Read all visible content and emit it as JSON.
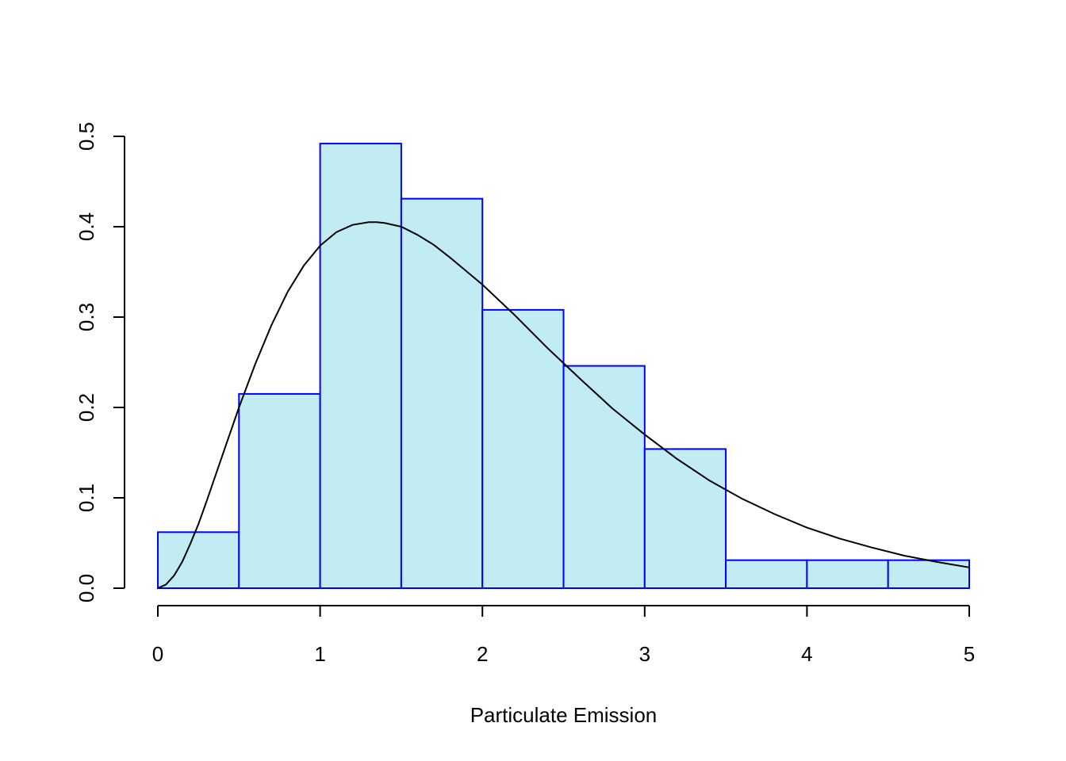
{
  "chart_data": {
    "type": "bar",
    "subtype": "histogram-with-density-curve",
    "title": "",
    "xlabel": "Particulate Emission",
    "ylabel": "",
    "xlim": [
      0,
      5
    ],
    "ylim": [
      0,
      0.5
    ],
    "x_ticks": [
      "0",
      "1",
      "2",
      "3",
      "4",
      "5"
    ],
    "y_ticks": [
      "0.0",
      "0.1",
      "0.2",
      "0.3",
      "0.4",
      "0.5"
    ],
    "bins": [
      {
        "from": 0.0,
        "to": 0.5,
        "density": 0.062
      },
      {
        "from": 0.5,
        "to": 1.0,
        "density": 0.215
      },
      {
        "from": 1.0,
        "to": 1.5,
        "density": 0.492
      },
      {
        "from": 1.5,
        "to": 2.0,
        "density": 0.431
      },
      {
        "from": 2.0,
        "to": 2.5,
        "density": 0.308
      },
      {
        "from": 2.5,
        "to": 3.0,
        "density": 0.246
      },
      {
        "from": 3.0,
        "to": 3.5,
        "density": 0.154
      },
      {
        "from": 3.5,
        "to": 4.0,
        "density": 0.031
      },
      {
        "from": 4.0,
        "to": 4.5,
        "density": 0.031
      },
      {
        "from": 4.5,
        "to": 5.0,
        "density": 0.031
      }
    ],
    "curve": {
      "x": [
        0,
        0.05,
        0.1,
        0.15,
        0.2,
        0.25,
        0.3,
        0.35,
        0.4,
        0.5,
        0.6,
        0.7,
        0.8,
        0.9,
        1.0,
        1.1,
        1.2,
        1.3,
        1.35,
        1.4,
        1.5,
        1.6,
        1.7,
        1.8,
        1.9,
        2.0,
        2.2,
        2.4,
        2.5,
        2.6,
        2.8,
        3.0,
        3.2,
        3.4,
        3.5,
        3.6,
        3.8,
        4.0,
        4.2,
        4.4,
        4.6,
        4.8,
        5.0
      ],
      "y": [
        0.0,
        0.004,
        0.014,
        0.029,
        0.049,
        0.071,
        0.096,
        0.122,
        0.148,
        0.2,
        0.248,
        0.291,
        0.328,
        0.357,
        0.379,
        0.394,
        0.402,
        0.405,
        0.405,
        0.404,
        0.4,
        0.391,
        0.38,
        0.366,
        0.351,
        0.336,
        0.302,
        0.266,
        0.249,
        0.232,
        0.199,
        0.17,
        0.143,
        0.119,
        0.109,
        0.099,
        0.082,
        0.067,
        0.055,
        0.045,
        0.036,
        0.029,
        0.023
      ]
    },
    "grid": false,
    "legend": "none",
    "colors": {
      "bar_fill": "#c2ecf4",
      "bar_stroke": "#0000ff",
      "curve": "#000000"
    }
  }
}
